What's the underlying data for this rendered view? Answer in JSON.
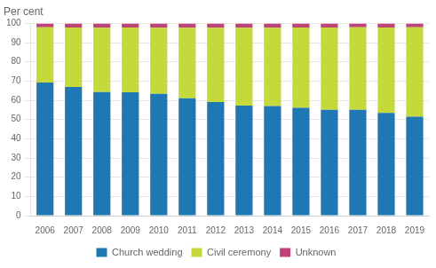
{
  "chart_data": {
    "type": "bar",
    "stacked": true,
    "ylabel": "Per cent",
    "categories": [
      "2006",
      "2007",
      "2008",
      "2009",
      "2010",
      "2011",
      "2012",
      "2013",
      "2014",
      "2015",
      "2016",
      "2017",
      "2018",
      "2019"
    ],
    "series": [
      {
        "name": "Church wedding",
        "color": "#1f77b4",
        "values": [
          69.3,
          67.0,
          64.3,
          64.2,
          63.4,
          61.1,
          59.1,
          57.3,
          57.0,
          56.1,
          55.0,
          55.0,
          53.4,
          51.5
        ]
      },
      {
        "name": "Civil ceremony",
        "color": "#c5d93a",
        "values": [
          28.7,
          30.9,
          33.5,
          33.7,
          34.4,
          36.7,
          38.7,
          40.5,
          40.8,
          41.8,
          42.9,
          43.0,
          44.5,
          46.5
        ]
      },
      {
        "name": "Unknown",
        "color": "#c0427a",
        "values": [
          2.0,
          2.1,
          2.2,
          2.1,
          2.2,
          2.2,
          2.2,
          2.2,
          2.2,
          2.1,
          2.1,
          2.0,
          2.1,
          2.0
        ]
      }
    ],
    "ylim": [
      0,
      100
    ],
    "yticks": [
      0,
      10,
      20,
      30,
      40,
      50,
      60,
      70,
      80,
      90,
      100
    ],
    "grid": true,
    "legend": "bottom"
  }
}
